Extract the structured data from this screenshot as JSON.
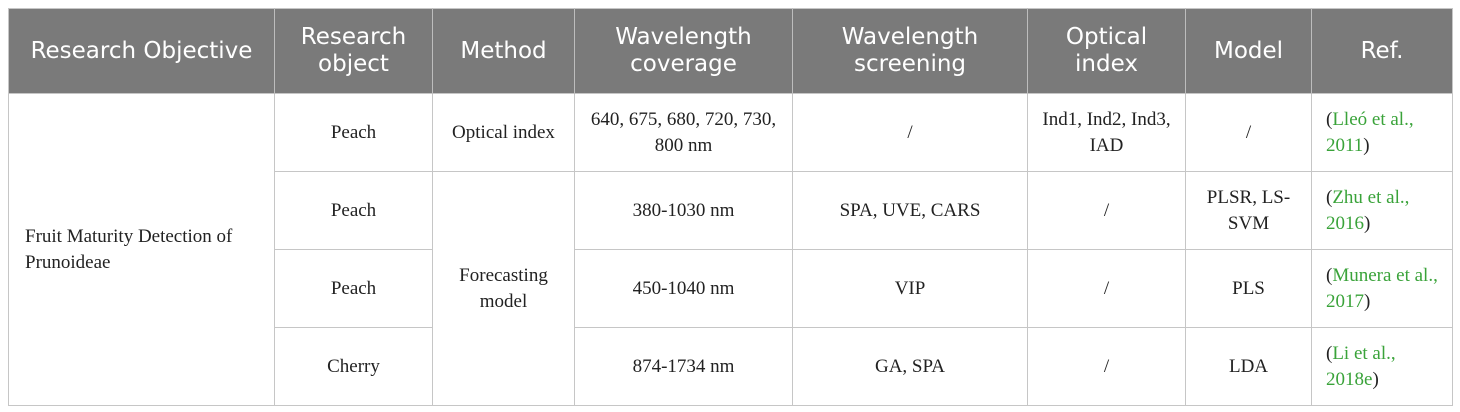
{
  "headers": {
    "objective": "Research Objective",
    "object": "Research object",
    "method": "Method",
    "coverage": "Wavelength coverage",
    "screening": "Wavelength screening",
    "optical_index": "Optical index",
    "model": "Model",
    "ref": "Ref."
  },
  "objective": "Fruit Maturity Detection of Prunoideae",
  "methods": {
    "optical": "Optical index",
    "forecast": "Forecasting model"
  },
  "rows": [
    {
      "object": "Peach",
      "coverage": "640, 675, 680, 720, 730, 800 nm",
      "screening": "/",
      "optical_index": "Ind1, Ind2, Ind3, IAD",
      "model": "/",
      "ref": "Lleó et al., 2011"
    },
    {
      "object": "Peach",
      "coverage": "380-1030 nm",
      "screening": "SPA, UVE, CARS",
      "optical_index": "/",
      "model": "PLSR, LS-SVM",
      "ref": "Zhu et al., 2016"
    },
    {
      "object": "Peach",
      "coverage": "450-1040 nm",
      "screening": "VIP",
      "optical_index": "/",
      "model": "PLS",
      "ref": "Munera et al., 2017"
    },
    {
      "object": "Cherry",
      "coverage": "874-1734 nm",
      "screening": "GA, SPA",
      "optical_index": "/",
      "model": "LDA",
      "ref": "Li et al., 2018e"
    }
  ],
  "colors": {
    "header_bg": "#7a7a7a",
    "header_text": "#ffffff",
    "ref_link": "#3aa33a",
    "border": "#c6c6c6"
  }
}
